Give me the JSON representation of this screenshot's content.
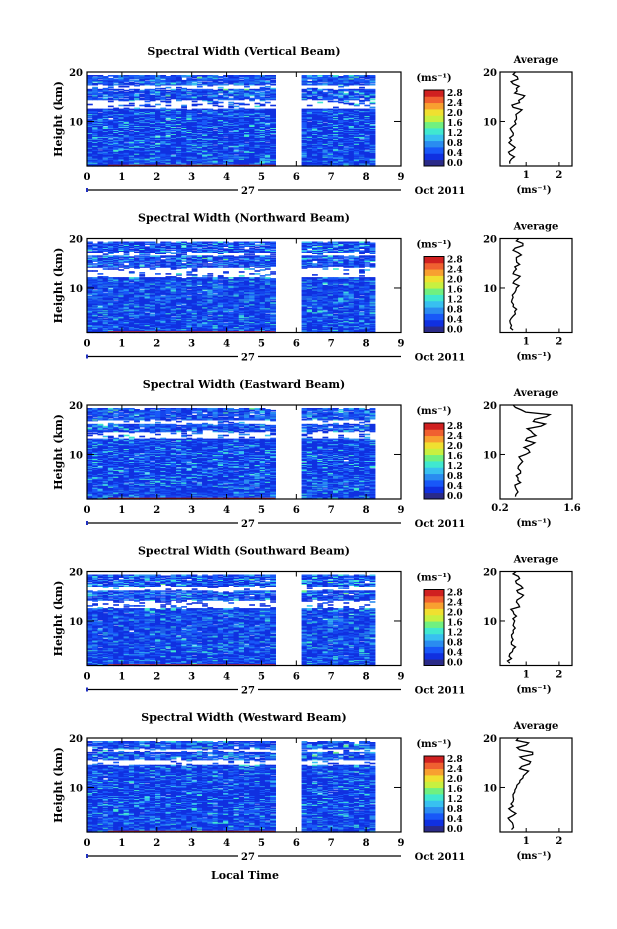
{
  "figure": {
    "xlabel": "Local Time",
    "date_center": "27",
    "date_right": "Oct 2011",
    "ylabel": "Height (km)",
    "unit_label": "(ms⁻¹)",
    "avg_title": "Average",
    "avg_xlabel": "(ms⁻¹)"
  },
  "colorbar": {
    "ticks": [
      "2.8",
      "2.4",
      "2.0",
      "1.6",
      "1.2",
      "0.8",
      "0.4",
      "0.0"
    ],
    "colors": [
      "#2a2a88",
      "#1030e0",
      "#1858f8",
      "#2a8cf0",
      "#38c0f0",
      "#40e8d0",
      "#70f080",
      "#c8f040",
      "#f0e030",
      "#f8a030",
      "#f06030",
      "#d02020"
    ]
  },
  "chart_data": [
    {
      "type": "heatmap",
      "title": "Spectral Width (Vertical Beam)",
      "x_ticks": [
        "0",
        "1",
        "2",
        "3",
        "4",
        "5",
        "6",
        "7",
        "8",
        "9"
      ],
      "y_ticks": [
        "10",
        "20"
      ],
      "xlim": [
        0,
        9
      ],
      "ylim": [
        1,
        20
      ],
      "data_gap_hours": [
        5.45,
        6.15
      ],
      "data_end_hour": 8.2,
      "white_bands_km": [
        [
          12.5,
          14.2
        ],
        [
          16.5,
          17.2
        ]
      ],
      "data_top_km": 19.3,
      "profile": {
        "title": "Average",
        "x_ticks": [
          "1",
          "2"
        ],
        "x_tick_values": [
          1,
          2
        ],
        "xlim": [
          0.2,
          2.4
        ],
        "y_ticks": [
          "10",
          "20"
        ],
        "ylim": [
          1,
          20
        ],
        "values": [
          0.5,
          0.55,
          0.5,
          0.6,
          0.55,
          0.55,
          0.6,
          0.55,
          0.6,
          0.65,
          0.7,
          0.8,
          0.6,
          0.8,
          0.9,
          0.65,
          0.7,
          0.6,
          0.75,
          0.6
        ]
      }
    },
    {
      "type": "heatmap",
      "title": "Spectral Width (Northward Beam)",
      "x_ticks": [
        "0",
        "1",
        "2",
        "3",
        "4",
        "5",
        "6",
        "7",
        "8",
        "9"
      ],
      "y_ticks": [
        "10",
        "20"
      ],
      "xlim": [
        0,
        9
      ],
      "ylim": [
        1,
        20
      ],
      "data_gap_hours": [
        5.45,
        6.15
      ],
      "data_end_hour": 8.2,
      "white_bands_km": [
        [
          12.0,
          14.0
        ],
        [
          16.5,
          17.0
        ]
      ],
      "data_top_km": 19.3,
      "profile": {
        "title": "Average",
        "x_ticks": [
          "1",
          "2"
        ],
        "x_tick_values": [
          1,
          2
        ],
        "xlim": [
          0.2,
          2.4
        ],
        "y_ticks": [
          "10",
          "20"
        ],
        "ylim": [
          1,
          20
        ],
        "values": [
          0.6,
          0.55,
          0.5,
          0.6,
          0.65,
          0.6,
          0.55,
          0.6,
          0.65,
          0.7,
          0.6,
          0.75,
          0.6,
          0.7,
          0.8,
          0.7,
          0.85,
          0.6,
          0.9,
          0.7
        ]
      }
    },
    {
      "type": "heatmap",
      "title": "Spectral Width (Eastward Beam)",
      "x_ticks": [
        "0",
        "1",
        "2",
        "3",
        "4",
        "5",
        "6",
        "7",
        "8",
        "9"
      ],
      "y_ticks": [
        "10",
        "20"
      ],
      "xlim": [
        0,
        9
      ],
      "ylim": [
        1,
        20
      ],
      "data_gap_hours": [
        5.45,
        6.15
      ],
      "data_end_hour": 8.2,
      "white_bands_km": [
        [
          13.0,
          14.5
        ],
        [
          16.0,
          16.8
        ]
      ],
      "data_top_km": 19.3,
      "profile": {
        "title": "Average",
        "x_ticks": [
          "0.2",
          "1.6"
        ],
        "x_tick_values": [
          0.2,
          1.6
        ],
        "xlim": [
          0.2,
          1.6
        ],
        "y_ticks": [
          "10",
          "20"
        ],
        "ylim": [
          1,
          20
        ],
        "values": [
          0.5,
          0.55,
          0.5,
          0.6,
          0.55,
          0.6,
          0.55,
          0.6,
          0.6,
          0.7,
          0.75,
          0.8,
          0.7,
          0.9,
          0.8,
          1.0,
          0.85,
          1.1,
          0.7,
          0.5
        ]
      }
    },
    {
      "type": "heatmap",
      "title": "Spectral Width (Southward Beam)",
      "x_ticks": [
        "0",
        "1",
        "2",
        "3",
        "4",
        "5",
        "6",
        "7",
        "8",
        "9"
      ],
      "y_ticks": [
        "10",
        "20"
      ],
      "xlim": [
        0,
        9
      ],
      "ylim": [
        1,
        20
      ],
      "data_gap_hours": [
        5.45,
        6.15
      ],
      "data_end_hour": 8.2,
      "white_bands_km": [
        [
          12.5,
          14.0
        ],
        [
          16.0,
          16.8
        ]
      ],
      "data_top_km": 19.3,
      "profile": {
        "title": "Average",
        "x_ticks": [
          "1",
          "2"
        ],
        "x_tick_values": [
          1,
          2
        ],
        "xlim": [
          0.2,
          2.4
        ],
        "y_ticks": [
          "10",
          "20"
        ],
        "ylim": [
          1,
          20
        ],
        "values": [
          0.5,
          0.55,
          0.5,
          0.6,
          0.55,
          0.6,
          0.55,
          0.6,
          0.6,
          0.65,
          0.7,
          0.6,
          0.8,
          0.7,
          0.85,
          0.75,
          0.9,
          0.7,
          0.8,
          0.6
        ]
      }
    },
    {
      "type": "heatmap",
      "title": "Spectral Width (Westward Beam)",
      "x_ticks": [
        "0",
        "1",
        "2",
        "3",
        "4",
        "5",
        "6",
        "7",
        "8",
        "9"
      ],
      "y_ticks": [
        "10",
        "20"
      ],
      "xlim": [
        0,
        9
      ],
      "ylim": [
        1,
        20
      ],
      "data_gap_hours": [
        5.45,
        6.15
      ],
      "data_end_hour": 8.2,
      "white_bands_km": [
        [
          14.5,
          15.5
        ],
        [
          17.0,
          17.6
        ]
      ],
      "data_top_km": 19.3,
      "profile": {
        "title": "Average",
        "x_ticks": [
          "1",
          "2"
        ],
        "x_tick_values": [
          1,
          2
        ],
        "xlim": [
          0.2,
          2.4
        ],
        "y_ticks": [
          "10",
          "20"
        ],
        "ylim": [
          1,
          20
        ],
        "values": [
          0.55,
          0.6,
          0.5,
          0.6,
          0.55,
          0.6,
          0.6,
          0.6,
          0.65,
          0.7,
          0.8,
          0.9,
          1.0,
          0.8,
          1.1,
          0.9,
          1.2,
          0.8,
          1.0,
          0.7
        ]
      }
    }
  ]
}
